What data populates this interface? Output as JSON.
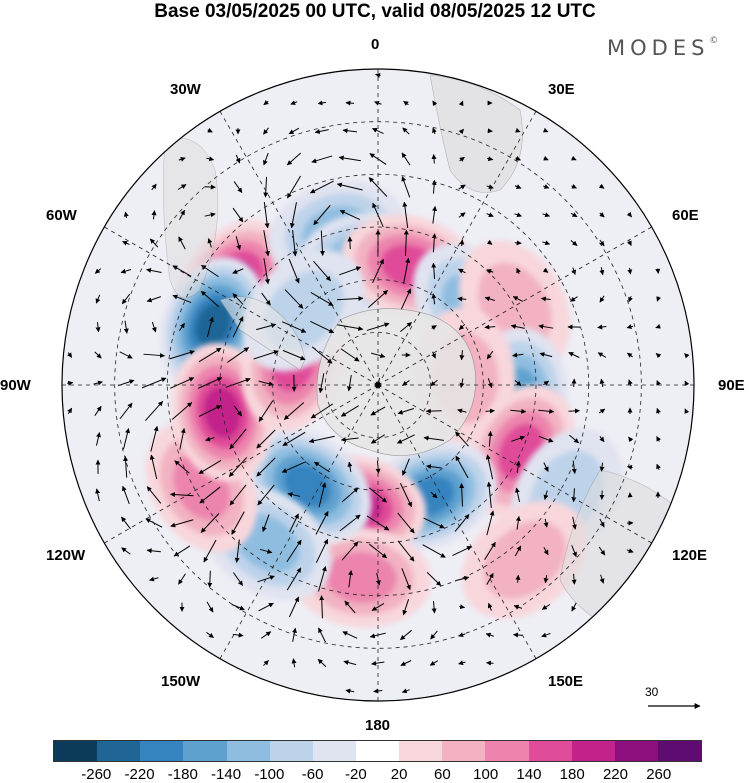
{
  "title": "Base 03/05/2025 00 UTC, valid 08/05/2025 12 UTC",
  "brand": "MODES",
  "brand_mark": "©",
  "longitude_labels": {
    "lon_0": "0",
    "lon_30e": "30E",
    "lon_60e": "60E",
    "lon_90e": "90E",
    "lon_120e": "120E",
    "lon_150e": "150E",
    "lon_180": "180",
    "lon_150w": "150W",
    "lon_120w": "120W",
    "lon_90w": "90W",
    "lon_60w": "60W",
    "lon_30w": "30W"
  },
  "reference_vector": "30",
  "colorbar": {
    "colors": [
      "#0b3a5a",
      "#1f6596",
      "#3583bf",
      "#5ea1cf",
      "#8fbde0",
      "#bdd3ea",
      "#e0e3f0",
      "#ffffff",
      "#f8d7dc",
      "#f2b2c2",
      "#ec84ad",
      "#e04c99",
      "#c2228a",
      "#8c0f7e",
      "#5e0b72"
    ],
    "tick_labels": [
      "-260",
      "-220",
      "-180",
      "-140",
      "-100",
      "-60",
      "-20",
      "20",
      "60",
      "100",
      "140",
      "180",
      "220",
      "260"
    ]
  },
  "anomaly_centers": [
    {
      "lon": -55,
      "lat": -40,
      "value": 200
    },
    {
      "lon": -70,
      "lat": -40,
      "value": -240
    },
    {
      "lon": -15,
      "lat": -45,
      "value": -120
    },
    {
      "lon": -5,
      "lat": -55,
      "value": -170
    },
    {
      "lon": 15,
      "lat": -55,
      "value": 160
    },
    {
      "lon": 50,
      "lat": -55,
      "value": -110
    },
    {
      "lon": 60,
      "lat": -45,
      "value": 90
    },
    {
      "lon": 95,
      "lat": -50,
      "value": -150
    },
    {
      "lon": 85,
      "lat": -65,
      "value": 70
    },
    {
      "lon": 115,
      "lat": -45,
      "value": 160
    },
    {
      "lon": 120,
      "lat": -28,
      "value": -60
    },
    {
      "lon": 155,
      "lat": -55,
      "value": -200
    },
    {
      "lon": -170,
      "lat": -55,
      "value": 180
    },
    {
      "lon": -175,
      "lat": -35,
      "value": 100
    },
    {
      "lon": -145,
      "lat": -55,
      "value": -200
    },
    {
      "lon": -145,
      "lat": -35,
      "value": -110
    },
    {
      "lon": -120,
      "lat": -32,
      "value": 110
    },
    {
      "lon": -100,
      "lat": -45,
      "value": 180
    },
    {
      "lon": -75,
      "lat": -65,
      "value": 140
    },
    {
      "lon": -45,
      "lat": -60,
      "value": -60
    },
    {
      "lon": 140,
      "lat": -25,
      "value": 60
    }
  ]
}
